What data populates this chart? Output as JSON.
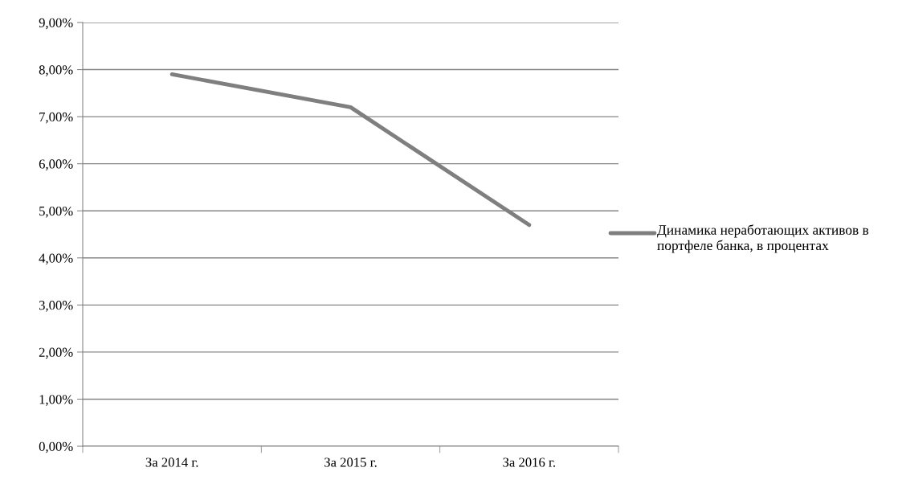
{
  "chart_data": {
    "type": "line",
    "categories": [
      "За 2014 г.",
      "За 2015 г.",
      "За 2016 г."
    ],
    "series": [
      {
        "name": "Динамика неработающих активов в портфеле банка, в процентах",
        "color": "#7f7f7f",
        "values": [
          7.9,
          7.2,
          4.7
        ]
      }
    ],
    "ylim": [
      0,
      9
    ],
    "yticks": [
      {
        "value": 0,
        "label": "0,00%"
      },
      {
        "value": 1,
        "label": "1,00%"
      },
      {
        "value": 2,
        "label": "2,00%"
      },
      {
        "value": 3,
        "label": "3,00%"
      },
      {
        "value": 4,
        "label": "4,00%"
      },
      {
        "value": 5,
        "label": "5,00%"
      },
      {
        "value": 6,
        "label": "6,00%"
      },
      {
        "value": 7,
        "label": "7,00%"
      },
      {
        "value": 8,
        "label": "8,00%"
      },
      {
        "value": 9,
        "label": "9,00%"
      }
    ],
    "grid": "y",
    "legend": "right",
    "marker": "none",
    "line_style": "solid"
  }
}
